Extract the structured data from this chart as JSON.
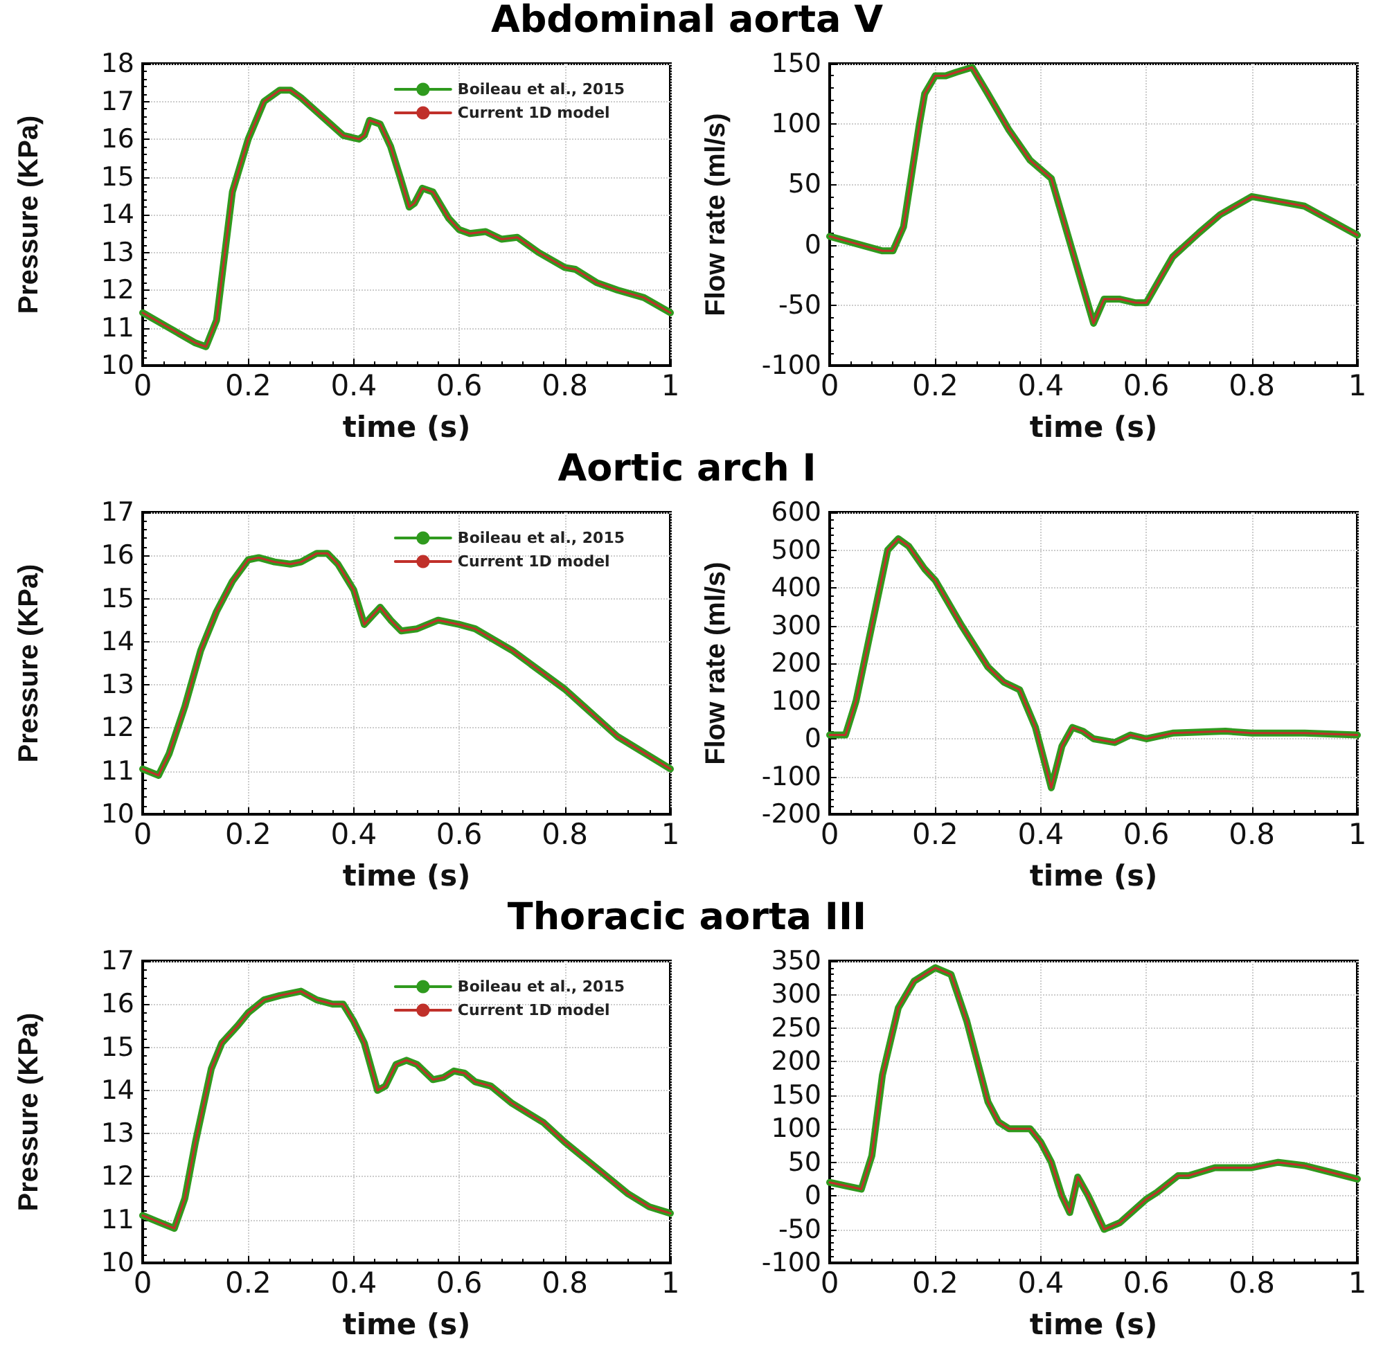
{
  "chart_data": [
    {
      "type": "line",
      "title": "Abdominal aorta V",
      "xlabel": "time (s)",
      "ylabel": "Pressure (KPa)",
      "xlim": [
        0,
        1
      ],
      "xticks": [
        0,
        0.2,
        0.4,
        0.6,
        0.8,
        1
      ],
      "ylim": [
        10,
        18
      ],
      "yticks": [
        10,
        11,
        12,
        13,
        14,
        15,
        16,
        17,
        18
      ],
      "grid": true,
      "legend": "top right",
      "marker": "none",
      "line_style": "solid",
      "x": [
        0,
        0.05,
        0.1,
        0.12,
        0.14,
        0.17,
        0.2,
        0.23,
        0.26,
        0.28,
        0.3,
        0.34,
        0.38,
        0.41,
        0.42,
        0.43,
        0.45,
        0.47,
        0.49,
        0.505,
        0.515,
        0.53,
        0.55,
        0.58,
        0.6,
        0.62,
        0.65,
        0.68,
        0.71,
        0.75,
        0.8,
        0.82,
        0.86,
        0.9,
        0.95,
        1
      ],
      "series": [
        {
          "name": "Boileau et al., 2015",
          "color": "#2f9a1e",
          "values": [
            11.4,
            11,
            10.6,
            10.5,
            11.2,
            14.6,
            16,
            17,
            17.3,
            17.3,
            17.1,
            16.6,
            16.1,
            16,
            16.1,
            16.5,
            16.4,
            15.8,
            14.9,
            14.2,
            14.3,
            14.7,
            14.6,
            13.9,
            13.6,
            13.5,
            13.55,
            13.35,
            13.4,
            13,
            12.6,
            12.55,
            12.2,
            12,
            11.8,
            11.4
          ]
        },
        {
          "name": "Current 1D model",
          "color": "#c0302a",
          "values": [
            11.4,
            11,
            10.6,
            10.5,
            11.2,
            14.6,
            16,
            17,
            17.3,
            17.3,
            17.1,
            16.6,
            16.1,
            16,
            16.1,
            16.5,
            16.4,
            15.8,
            14.9,
            14.2,
            14.3,
            14.7,
            14.6,
            13.9,
            13.6,
            13.5,
            13.55,
            13.35,
            13.4,
            13,
            12.6,
            12.55,
            12.2,
            12,
            11.8,
            11.4
          ]
        }
      ]
    },
    {
      "type": "line",
      "xlabel": "time (s)",
      "ylabel": "Flow rate (ml/s)",
      "xlim": [
        0,
        1
      ],
      "xticks": [
        0,
        0.2,
        0.4,
        0.6,
        0.8,
        1
      ],
      "ylim": [
        -100,
        150
      ],
      "yticks": [
        -100,
        -50,
        0,
        50,
        100,
        150
      ],
      "grid": true,
      "legend": false,
      "marker": "none",
      "line_style": "solid",
      "x": [
        0,
        0.05,
        0.1,
        0.12,
        0.14,
        0.17,
        0.18,
        0.2,
        0.22,
        0.24,
        0.27,
        0.3,
        0.34,
        0.38,
        0.42,
        0.46,
        0.5,
        0.52,
        0.55,
        0.58,
        0.6,
        0.63,
        0.65,
        0.7,
        0.74,
        0.8,
        0.85,
        0.9,
        0.95,
        1
      ],
      "series": [
        {
          "color": "#2f9a1e",
          "values": [
            7,
            1,
            -5,
            -5,
            15,
            100,
            125,
            140,
            140,
            143,
            147,
            125,
            95,
            70,
            55,
            -5,
            -65,
            -45,
            -45,
            -48,
            -48,
            -25,
            -10,
            10,
            25,
            40,
            36,
            32,
            20,
            8
          ]
        },
        {
          "color": "#c0302a",
          "values": [
            7,
            1,
            -5,
            -5,
            15,
            100,
            125,
            140,
            140,
            143,
            147,
            125,
            95,
            70,
            55,
            -5,
            -65,
            -45,
            -45,
            -48,
            -48,
            -25,
            -10,
            10,
            25,
            40,
            36,
            32,
            20,
            8
          ]
        }
      ]
    },
    {
      "type": "line",
      "title": "Aortic arch I",
      "xlabel": "time (s)",
      "ylabel": "Pressure (KPa)",
      "xlim": [
        0,
        1
      ],
      "xticks": [
        0,
        0.2,
        0.4,
        0.6,
        0.8,
        1
      ],
      "ylim": [
        10,
        17
      ],
      "yticks": [
        10,
        11,
        12,
        13,
        14,
        15,
        16,
        17
      ],
      "grid": true,
      "legend": "top right",
      "marker": "none",
      "line_style": "solid",
      "x": [
        0,
        0.03,
        0.05,
        0.08,
        0.11,
        0.14,
        0.17,
        0.2,
        0.22,
        0.25,
        0.28,
        0.3,
        0.33,
        0.35,
        0.37,
        0.4,
        0.42,
        0.435,
        0.45,
        0.47,
        0.49,
        0.52,
        0.56,
        0.6,
        0.63,
        0.7,
        0.8,
        0.9,
        1
      ],
      "series": [
        {
          "name": "Boileau et al., 2015",
          "color": "#2f9a1e",
          "values": [
            11.05,
            10.9,
            11.4,
            12.5,
            13.8,
            14.7,
            15.4,
            15.9,
            15.95,
            15.85,
            15.8,
            15.85,
            16.05,
            16.05,
            15.8,
            15.2,
            14.4,
            14.6,
            14.8,
            14.5,
            14.25,
            14.3,
            14.5,
            14.4,
            14.3,
            13.8,
            12.9,
            11.8,
            11.05
          ]
        },
        {
          "name": "Current 1D model",
          "color": "#c0302a",
          "values": [
            11.05,
            10.9,
            11.4,
            12.5,
            13.8,
            14.7,
            15.4,
            15.9,
            15.95,
            15.85,
            15.8,
            15.85,
            16.05,
            16.05,
            15.8,
            15.2,
            14.4,
            14.6,
            14.8,
            14.5,
            14.25,
            14.3,
            14.5,
            14.4,
            14.3,
            13.8,
            12.9,
            11.8,
            11.05
          ]
        }
      ]
    },
    {
      "type": "line",
      "xlabel": "time (s)",
      "ylabel": "Flow rate (ml/s)",
      "xlim": [
        0,
        1
      ],
      "xticks": [
        0,
        0.2,
        0.4,
        0.6,
        0.8,
        1
      ],
      "ylim": [
        -200,
        600
      ],
      "yticks": [
        -200,
        -100,
        0,
        100,
        200,
        300,
        400,
        500,
        600
      ],
      "grid": true,
      "legend": false,
      "marker": "none",
      "line_style": "solid",
      "x": [
        0,
        0.03,
        0.05,
        0.08,
        0.11,
        0.13,
        0.15,
        0.18,
        0.2,
        0.25,
        0.3,
        0.33,
        0.36,
        0.39,
        0.42,
        0.44,
        0.46,
        0.48,
        0.5,
        0.54,
        0.57,
        0.6,
        0.65,
        0.75,
        0.8,
        0.9,
        1
      ],
      "series": [
        {
          "color": "#2f9a1e",
          "values": [
            10,
            10,
            100,
            300,
            500,
            530,
            510,
            450,
            420,
            300,
            190,
            150,
            130,
            30,
            -130,
            -20,
            30,
            20,
            0,
            -10,
            10,
            0,
            15,
            20,
            15,
            15,
            10
          ]
        },
        {
          "color": "#c0302a",
          "values": [
            10,
            10,
            100,
            300,
            500,
            530,
            510,
            450,
            420,
            300,
            190,
            150,
            130,
            30,
            -130,
            -20,
            30,
            20,
            0,
            -10,
            10,
            0,
            15,
            20,
            15,
            15,
            10
          ]
        }
      ]
    },
    {
      "type": "line",
      "title": "Thoracic aorta III",
      "xlabel": "time (s)",
      "ylabel": "Pressure (KPa)",
      "xlim": [
        0,
        1
      ],
      "xticks": [
        0,
        0.2,
        0.4,
        0.6,
        0.8,
        1
      ],
      "ylim": [
        10,
        17
      ],
      "yticks": [
        10,
        11,
        12,
        13,
        14,
        15,
        16,
        17
      ],
      "grid": true,
      "legend": "top right",
      "marker": "none",
      "line_style": "solid",
      "x": [
        0,
        0.03,
        0.06,
        0.08,
        0.1,
        0.13,
        0.15,
        0.18,
        0.2,
        0.23,
        0.26,
        0.3,
        0.33,
        0.36,
        0.38,
        0.4,
        0.42,
        0.445,
        0.46,
        0.48,
        0.5,
        0.52,
        0.55,
        0.57,
        0.59,
        0.61,
        0.63,
        0.66,
        0.7,
        0.76,
        0.8,
        0.87,
        0.92,
        0.96,
        1
      ],
      "series": [
        {
          "name": "Boileau et al., 2015",
          "color": "#2f9a1e",
          "values": [
            11.1,
            10.95,
            10.8,
            11.5,
            12.8,
            14.5,
            15.1,
            15.5,
            15.8,
            16.1,
            16.2,
            16.3,
            16.1,
            16,
            16,
            15.6,
            15.1,
            14,
            14.1,
            14.6,
            14.7,
            14.6,
            14.25,
            14.3,
            14.45,
            14.4,
            14.2,
            14.1,
            13.7,
            13.25,
            12.8,
            12.1,
            11.6,
            11.3,
            11.15
          ]
        },
        {
          "name": "Current 1D model",
          "color": "#c0302a",
          "values": [
            11.1,
            10.95,
            10.8,
            11.5,
            12.8,
            14.5,
            15.1,
            15.5,
            15.8,
            16.1,
            16.2,
            16.3,
            16.1,
            16,
            16,
            15.6,
            15.1,
            14,
            14.1,
            14.6,
            14.7,
            14.6,
            14.25,
            14.3,
            14.45,
            14.4,
            14.2,
            14.1,
            13.7,
            13.25,
            12.8,
            12.1,
            11.6,
            11.3,
            11.15
          ]
        }
      ]
    },
    {
      "type": "line",
      "xlabel": "time (s)",
      "xlim": [
        0,
        1
      ],
      "xticks": [
        0,
        0.2,
        0.4,
        0.6,
        0.8,
        1
      ],
      "ylim": [
        -100,
        350
      ],
      "yticks": [
        -100,
        -50,
        0,
        50,
        100,
        150,
        200,
        250,
        300,
        350
      ],
      "grid": true,
      "legend": false,
      "marker": "none",
      "line_style": "solid",
      "x": [
        0,
        0.03,
        0.06,
        0.08,
        0.1,
        0.13,
        0.16,
        0.2,
        0.23,
        0.26,
        0.28,
        0.3,
        0.32,
        0.34,
        0.38,
        0.4,
        0.42,
        0.44,
        0.455,
        0.47,
        0.49,
        0.52,
        0.55,
        0.6,
        0.62,
        0.66,
        0.68,
        0.73,
        0.8,
        0.85,
        0.9,
        0.95,
        1
      ],
      "series": [
        {
          "color": "#2f9a1e",
          "values": [
            20,
            15,
            10,
            60,
            180,
            280,
            320,
            340,
            330,
            260,
            200,
            140,
            110,
            100,
            100,
            80,
            50,
            0,
            -25,
            28,
            0,
            -50,
            -40,
            -5,
            5,
            30,
            30,
            42,
            42,
            50,
            45,
            35,
            25
          ]
        },
        {
          "color": "#c0302a",
          "values": [
            20,
            15,
            10,
            60,
            180,
            280,
            320,
            340,
            330,
            260,
            200,
            140,
            110,
            100,
            100,
            80,
            50,
            0,
            -25,
            28,
            0,
            -50,
            -40,
            -5,
            5,
            30,
            30,
            42,
            42,
            50,
            45,
            35,
            25
          ]
        }
      ]
    }
  ]
}
